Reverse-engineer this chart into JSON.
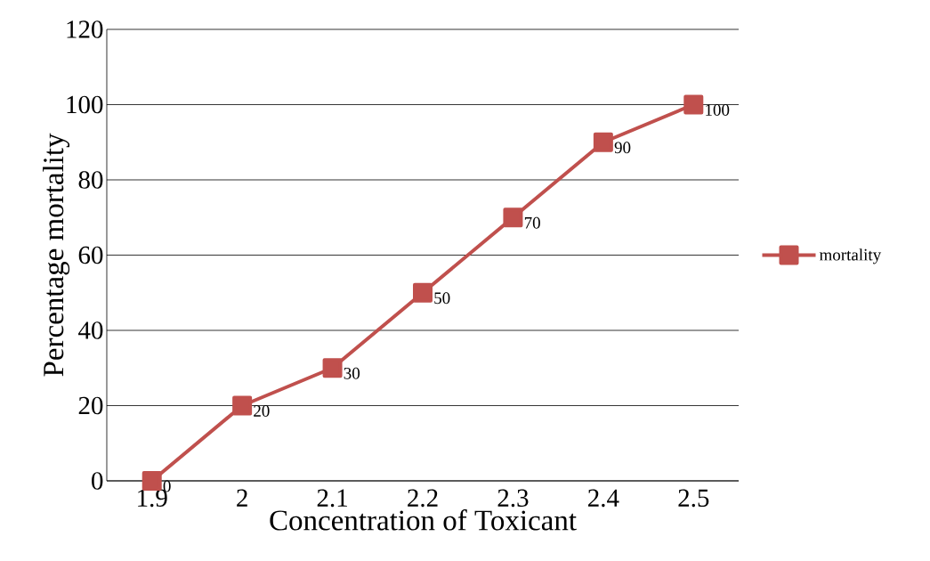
{
  "chart_data": {
    "type": "line",
    "xlabel": "Concentration of Toxicant",
    "ylabel": "Percentage mortality",
    "categories": [
      "1.9",
      "2",
      "2.1",
      "2.2",
      "2.3",
      "2.4",
      "2.5"
    ],
    "series": [
      {
        "name": "mortality",
        "color": "#c0504d",
        "values": [
          0,
          20,
          30,
          50,
          70,
          90,
          100
        ]
      }
    ],
    "ylim": [
      0,
      120
    ],
    "yticks": [
      0,
      20,
      40,
      60,
      80,
      100,
      120
    ],
    "grid": "y",
    "legend": "right",
    "marker": "square",
    "line_style": "solid",
    "data_labels": true
  }
}
